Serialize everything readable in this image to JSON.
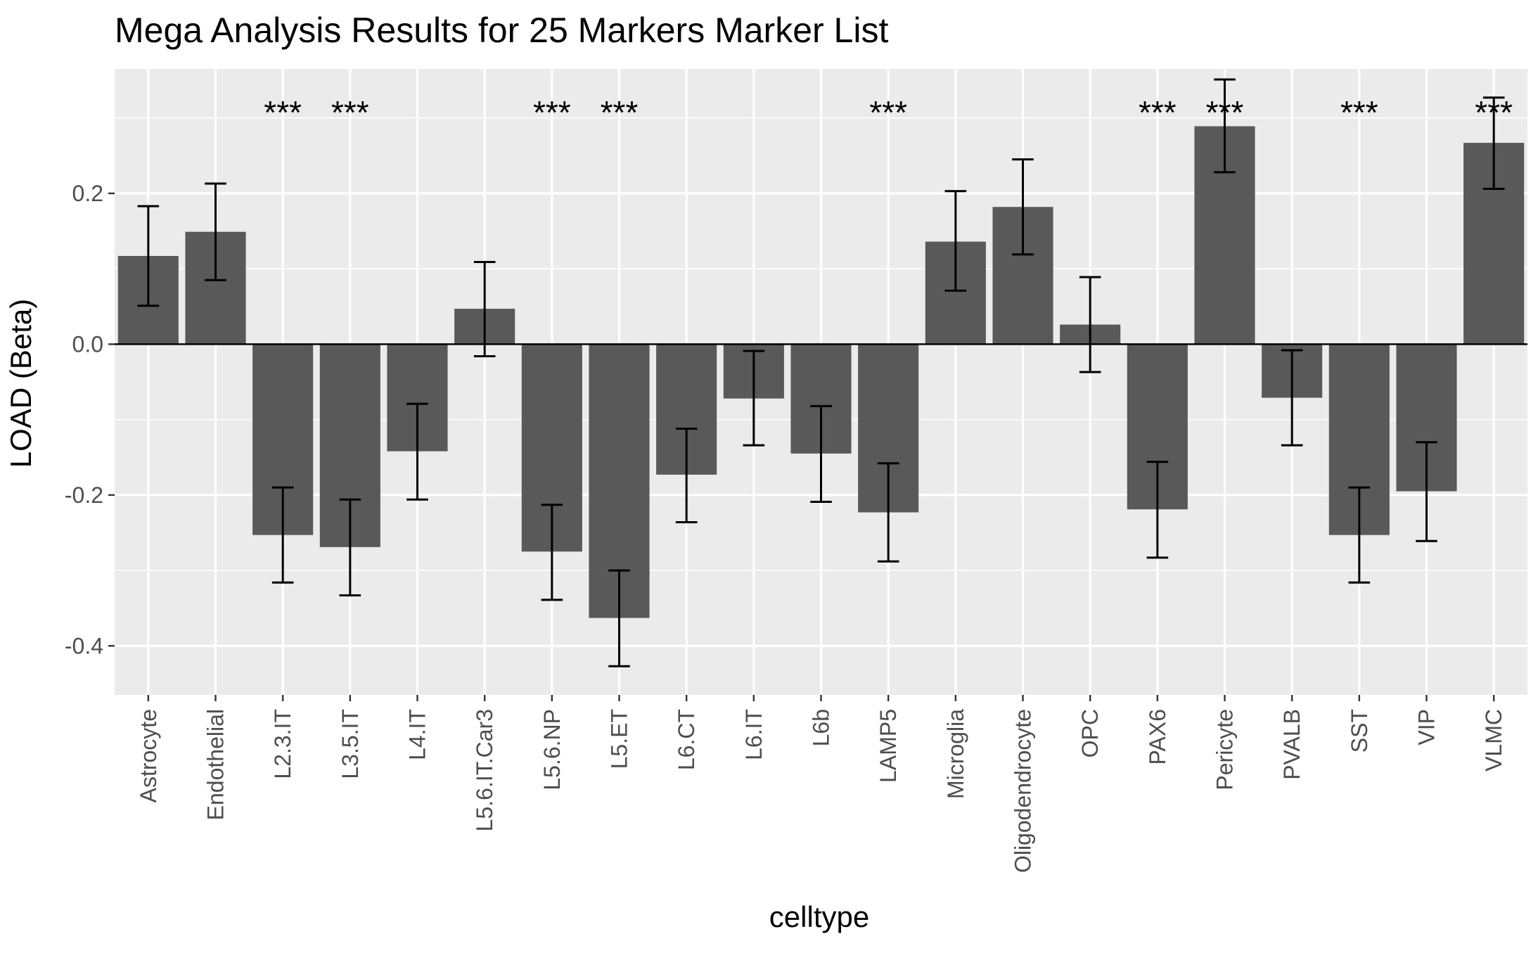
{
  "chart_data": {
    "type": "bar",
    "title": "Mega Analysis Results for 25 Markers Marker List",
    "xlabel": "celltype",
    "ylabel": "LOAD (Beta)",
    "ylim": [
      -0.465,
      0.365
    ],
    "yticks": [
      -0.4,
      -0.2,
      0.0,
      0.2
    ],
    "ytick_labels": [
      "-0.4",
      "-0.2",
      "0.0",
      "0.2"
    ],
    "grid": true,
    "legend": "none",
    "categories": [
      "Astrocyte",
      "Endothelial",
      "L2.3.IT",
      "L3.5.IT",
      "L4.IT",
      "L5.6.IT.Car3",
      "L5.6.NP",
      "L5.ET",
      "L6.CT",
      "L6.IT",
      "L6b",
      "LAMP5",
      "Microglia",
      "Oligodendrocyte",
      "OPC",
      "PAX6",
      "Pericyte",
      "PVALB",
      "SST",
      "VIP",
      "VLMC"
    ],
    "values": [
      0.117,
      0.149,
      -0.253,
      -0.269,
      -0.142,
      0.047,
      -0.275,
      -0.363,
      -0.173,
      -0.072,
      -0.145,
      -0.223,
      0.136,
      0.182,
      0.026,
      -0.219,
      0.289,
      -0.071,
      -0.253,
      -0.195,
      0.267
    ],
    "error_low": [
      0.051,
      0.085,
      -0.316,
      -0.333,
      -0.206,
      -0.016,
      -0.339,
      -0.427,
      -0.236,
      -0.134,
      -0.209,
      -0.288,
      0.071,
      0.119,
      -0.037,
      -0.283,
      0.228,
      -0.134,
      -0.316,
      -0.261,
      0.206
    ],
    "error_high": [
      0.183,
      0.213,
      -0.19,
      -0.206,
      -0.079,
      0.109,
      -0.213,
      -0.3,
      -0.112,
      -0.009,
      -0.082,
      -0.158,
      0.203,
      0.245,
      0.089,
      -0.156,
      0.351,
      -0.008,
      -0.19,
      -0.13,
      0.327
    ],
    "significance": [
      "",
      "",
      "***",
      "***",
      "",
      "",
      "***",
      "***",
      "",
      "",
      "",
      "***",
      "",
      "",
      "",
      "***",
      "***",
      "",
      "***",
      "",
      "***"
    ],
    "significance_y": 0.309,
    "colors": {
      "panel": "#EBEBEB",
      "grid": "#FFFFFF",
      "bar": "#595959",
      "error": "#000000",
      "axis_text": "#4D4D4D",
      "title": "#000000"
    }
  }
}
